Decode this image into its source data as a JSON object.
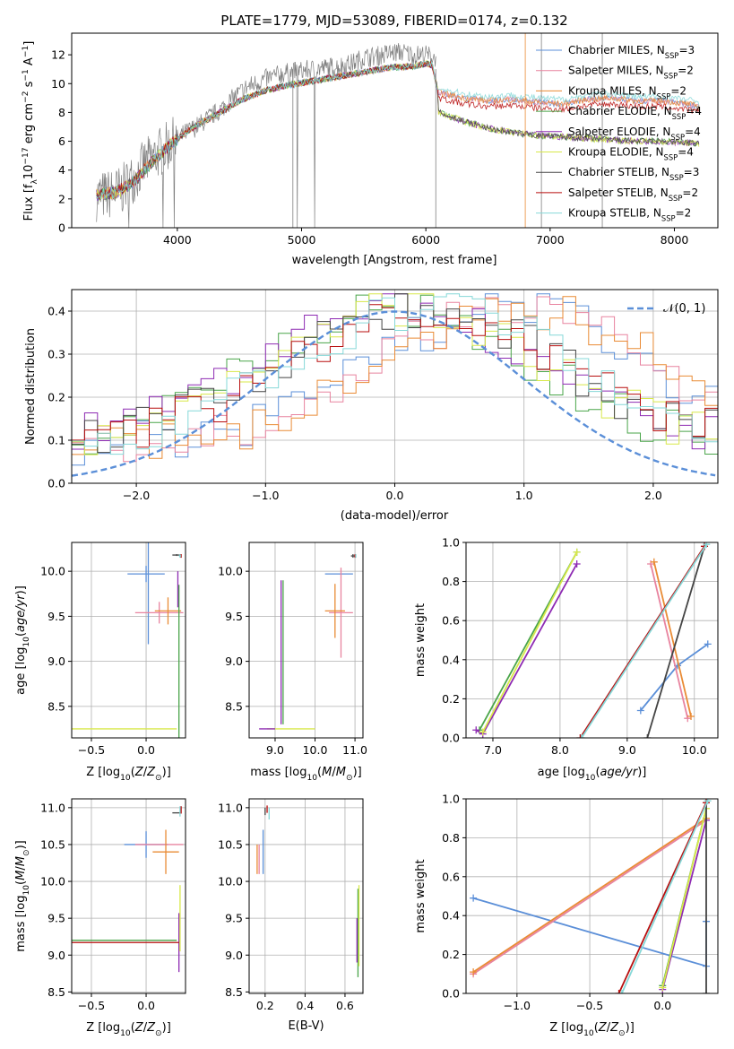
{
  "figure_title": "PLATE=1779, MJD=53089, FIBERID=0174, z=0.132",
  "models": [
    {
      "name": "Chabrier MILES, N",
      "sub": "SSP",
      "suffix": "=3",
      "color": "#5b8fd8"
    },
    {
      "name": "Salpeter MILES, N",
      "sub": "SSP",
      "suffix": "=2",
      "color": "#e8839f"
    },
    {
      "name": "Kroupa MILES, N",
      "sub": "SSP",
      "suffix": "=2",
      "color": "#e98b35"
    },
    {
      "name": "Chabrier ELODIE, N",
      "sub": "SSP",
      "suffix": "=4",
      "color": "#4aa54a"
    },
    {
      "name": "Salpeter ELODIE, N",
      "sub": "SSP",
      "suffix": "=4",
      "color": "#8e2bb3"
    },
    {
      "name": "Kroupa ELODIE, N",
      "sub": "SSP",
      "suffix": "=4",
      "color": "#d8e84a"
    },
    {
      "name": "Chabrier STELIB, N",
      "sub": "SSP",
      "suffix": "=3",
      "color": "#444444"
    },
    {
      "name": "Salpeter STELIB, N",
      "sub": "SSP",
      "suffix": "=2",
      "color": "#b80f0f"
    },
    {
      "name": "Kroupa STELIB, N",
      "sub": "SSP",
      "suffix": "=2",
      "color": "#86d8d8"
    }
  ],
  "chart_data": [
    {
      "id": "spectrum",
      "type": "line",
      "xlabel": "wavelength [Angstrom, rest frame]",
      "ylabel": "Flux [f_λ10^-17 erg cm^-2 s^-1 A^-1]",
      "xlim": [
        3150,
        8350
      ],
      "ylim": [
        0,
        13.5
      ],
      "xticks": [
        4000,
        5000,
        6000,
        7000,
        8000
      ],
      "yticks": [
        0,
        2,
        4,
        6,
        8,
        10,
        12
      ],
      "legend": "top-right",
      "grid": false,
      "data_color": "#808080",
      "data_anchors": {
        "x": [
          3350,
          3450,
          3550,
          3650,
          3750,
          3850,
          3950,
          4050,
          4150,
          4250,
          4350,
          4450,
          4550,
          4700,
          4850,
          5000,
          5100,
          5200,
          5300,
          5400,
          5500,
          5600,
          5700,
          5800,
          5900,
          6000,
          6080
        ],
        "y": [
          2.2,
          2.3,
          2.6,
          3.5,
          4.5,
          5.2,
          5.8,
          6.5,
          7.0,
          7.6,
          8.2,
          9.0,
          9.7,
          10.3,
          10.7,
          10.9,
          11.0,
          11.1,
          11.2,
          11.4,
          11.8,
          11.9,
          12.1,
          12.2,
          12.0,
          12.0,
          11.8
        ]
      },
      "model_anchors_top": {
        "x": [
          3350,
          3500,
          3650,
          3800,
          3950,
          4100,
          4300,
          4500,
          4700,
          4900,
          5100,
          5300,
          5500,
          5700,
          5900,
          6000,
          6050,
          6100,
          6300,
          6500,
          6700,
          6900,
          7100,
          7300,
          7500,
          7700,
          7900,
          8100,
          8200
        ],
        "y": [
          2.3,
          2.4,
          3.2,
          4.6,
          5.8,
          6.8,
          7.8,
          8.8,
          9.5,
          9.9,
          10.2,
          10.5,
          10.8,
          11.1,
          11.2,
          11.4,
          11.3,
          9.4,
          9.0,
          8.8,
          8.9,
          8.7,
          8.6,
          8.9,
          9.0,
          8.8,
          8.8,
          8.6,
          8.4
        ]
      },
      "model_anchors_bottom": {
        "x": [
          6100,
          6300,
          6500,
          6700,
          6900,
          7100,
          7300,
          7500,
          7700,
          7900,
          8100,
          8200
        ],
        "y": [
          8.0,
          7.4,
          6.9,
          6.6,
          6.4,
          6.3,
          6.2,
          6.1,
          6.0,
          6.0,
          5.9,
          5.8
        ]
      }
    },
    {
      "id": "residuals",
      "type": "step",
      "xlabel": "(data-model)/error",
      "ylabel": "Normed distribution",
      "xlim": [
        -2.5,
        2.5
      ],
      "ylim": [
        0,
        0.45
      ],
      "xticks": [
        -2,
        -1,
        0,
        1,
        2
      ],
      "yticks": [
        0.0,
        0.1,
        0.2,
        0.3,
        0.4
      ],
      "grid": true,
      "legend": "top-right",
      "reference_label": "𝒩(0, 1)",
      "reference_color": "#5b8fd8",
      "group_shift": [
        0.55,
        0.0,
        -0.35
      ],
      "bin_width": 0.1
    },
    {
      "id": "age-vs-Z",
      "type": "errorbar",
      "xlabel": "Z [log10(Z/Z⊙)]",
      "ylabel": "age  [log10(age/yr)]",
      "xlim": [
        -0.68,
        0.36
      ],
      "ylim": [
        8.15,
        10.32
      ],
      "xticks": [
        -0.5,
        0.0
      ],
      "yticks": [
        8.5,
        9.0,
        9.5,
        10.0
      ],
      "grid": true,
      "points": [
        {
          "m": 0,
          "x": 0.0,
          "y": 9.97,
          "xe": 0.17,
          "ye": 0.09
        },
        {
          "m": 0,
          "x": 0.02,
          "y": 9.97,
          "xe": 0.0,
          "ye": 0.78
        },
        {
          "m": 1,
          "x": 0.12,
          "y": 9.54,
          "xe": 0.22,
          "ye": 0.12
        },
        {
          "m": 2,
          "x": 0.2,
          "y": 9.56,
          "xe": 0.12,
          "ye": 0.15
        },
        {
          "m": 3,
          "x": 0.3,
          "y": 8.25,
          "xe": 0.0,
          "ye": 1.6
        },
        {
          "m": 4,
          "x": 0.29,
          "y": 9.8,
          "xe": 0.0,
          "ye": 0.2
        },
        {
          "m": 5,
          "x": -0.2,
          "y": 8.25,
          "xe": 0.48,
          "ye": 0.0
        },
        {
          "m": 6,
          "x": 0.28,
          "y": 10.18,
          "xe": 0.04,
          "ye": 0.01
        },
        {
          "m": 7,
          "x": 0.32,
          "y": 10.17,
          "xe": 0.0,
          "ye": 0.02
        },
        {
          "m": 8,
          "x": 0.31,
          "y": 10.17,
          "xe": 0.01,
          "ye": 0.02
        }
      ]
    },
    {
      "id": "age-vs-mass",
      "type": "errorbar",
      "xlabel": "mass [log10(M/M⊙)]",
      "ylabel": "",
      "xlim": [
        8.35,
        11.2
      ],
      "ylim": [
        8.15,
        10.32
      ],
      "xticks": [
        9,
        10,
        11
      ],
      "yticks": [
        8.5,
        9.0,
        9.5,
        10.0
      ],
      "grid": true,
      "points": [
        {
          "m": 0,
          "x": 10.6,
          "y": 9.97,
          "xe": 0.35,
          "ye": 0.0
        },
        {
          "m": 1,
          "x": 10.65,
          "y": 9.54,
          "xe": 0.3,
          "ye": 0.5
        },
        {
          "m": 2,
          "x": 10.5,
          "y": 9.56,
          "xe": 0.25,
          "ye": 0.3
        },
        {
          "m": 3,
          "x": 9.2,
          "y": 9.1,
          "xe": 0.0,
          "ye": 0.8
        },
        {
          "m": 4,
          "x": 9.15,
          "y": 9.1,
          "xe": 0.0,
          "ye": 0.8
        },
        {
          "m": 5,
          "x": 9.4,
          "y": 8.25,
          "xe": 0.6,
          "ye": 0.0
        },
        {
          "m": 6,
          "x": 10.95,
          "y": 10.17,
          "xe": 0.05,
          "ye": 0.02
        },
        {
          "m": 7,
          "x": 11.0,
          "y": 10.17,
          "xe": 0.0,
          "ye": 0.02
        },
        {
          "m": 8,
          "x": 11.02,
          "y": 10.17,
          "xe": 0.01,
          "ye": 0.02
        },
        {
          "m": 4,
          "x": 8.8,
          "y": 8.25,
          "xe": 0.2,
          "ye": 0.0
        }
      ]
    },
    {
      "id": "weight-vs-age",
      "type": "line",
      "xlabel": "age  [log10(age/yr)]",
      "ylabel": "mass weight",
      "xlim": [
        6.6,
        10.35
      ],
      "ylim": [
        0,
        1
      ],
      "xticks": [
        7,
        8,
        9,
        10
      ],
      "yticks": [
        0.0,
        0.2,
        0.4,
        0.6,
        0.8,
        1.0
      ],
      "grid": true,
      "series": [
        {
          "m": 0,
          "x": [
            9.2,
            9.75,
            10.2
          ],
          "y": [
            0.14,
            0.37,
            0.48
          ]
        },
        {
          "m": 1,
          "x": [
            9.35,
            9.9
          ],
          "y": [
            0.89,
            0.1
          ]
        },
        {
          "m": 2,
          "x": [
            9.4,
            9.95
          ],
          "y": [
            0.9,
            0.11
          ]
        },
        {
          "m": 3,
          "x": [
            6.8,
            8.25
          ],
          "y": [
            0.04,
            0.95
          ]
        },
        {
          "m": 4,
          "x": [
            6.75,
            6.85,
            8.25
          ],
          "y": [
            0.04,
            0.02,
            0.89
          ]
        },
        {
          "m": 5,
          "x": [
            6.85,
            8.25
          ],
          "y": [
            0.03,
            0.95
          ]
        },
        {
          "m": 6,
          "x": [
            9.3,
            10.15
          ],
          "y": [
            0.0,
            0.98
          ]
        },
        {
          "m": 7,
          "x": [
            8.3,
            10.15
          ],
          "y": [
            0.0,
            0.98
          ]
        },
        {
          "m": 8,
          "x": [
            8.32,
            10.18
          ],
          "y": [
            0.0,
            0.99
          ]
        }
      ]
    },
    {
      "id": "mass-vs-Z",
      "type": "errorbar",
      "xlabel": "Z [log10(Z/Z⊙)]",
      "ylabel": "mass [log10(M/M⊙)]",
      "xlim": [
        -0.68,
        0.36
      ],
      "ylim": [
        8.48,
        11.12
      ],
      "xticks": [
        -0.5,
        0.0
      ],
      "yticks": [
        8.5,
        9.0,
        9.5,
        10.0,
        10.5,
        11.0
      ],
      "grid": true,
      "points": [
        {
          "m": 0,
          "x": 0.0,
          "y": 10.5,
          "xe": 0.2,
          "ye": 0.18
        },
        {
          "m": 1,
          "x": 0.12,
          "y": 10.5,
          "xe": 0.22,
          "ye": 0.0
        },
        {
          "m": 2,
          "x": 0.18,
          "y": 10.4,
          "xe": 0.12,
          "ye": 0.3
        },
        {
          "m": 3,
          "x": -0.2,
          "y": 9.2,
          "xe": 0.48,
          "ye": 0.0
        },
        {
          "m": 4,
          "x": 0.3,
          "y": 9.17,
          "xe": 0.0,
          "ye": 0.4
        },
        {
          "m": 5,
          "x": 0.31,
          "y": 9.5,
          "xe": 0.0,
          "ye": 0.45
        },
        {
          "m": 6,
          "x": 0.28,
          "y": 10.93,
          "xe": 0.04,
          "ye": 0.0
        },
        {
          "m": 7,
          "x": 0.32,
          "y": 10.97,
          "xe": 0.0,
          "ye": 0.05
        },
        {
          "m": 8,
          "x": 0.31,
          "y": 10.95,
          "xe": 0.0,
          "ye": 0.07
        },
        {
          "m": 7,
          "x": -0.2,
          "y": 9.17,
          "xe": 0.5,
          "ye": 0.0
        }
      ]
    },
    {
      "id": "mass-vs-EBV",
      "type": "errorbar",
      "xlabel": "E(B-V)",
      "ylabel": "",
      "xlim": [
        0.12,
        0.69
      ],
      "ylim": [
        8.48,
        11.12
      ],
      "xticks": [
        0.2,
        0.4,
        0.6
      ],
      "yticks": [
        8.5,
        9.0,
        9.5,
        10.0,
        10.5,
        11.0
      ],
      "grid": true,
      "points": [
        {
          "m": 0,
          "x": 0.19,
          "y": 10.4,
          "xe": 0.0,
          "ye": 0.3
        },
        {
          "m": 1,
          "x": 0.17,
          "y": 10.3,
          "xe": 0.0,
          "ye": 0.2
        },
        {
          "m": 2,
          "x": 0.16,
          "y": 10.3,
          "xe": 0.0,
          "ye": 0.2
        },
        {
          "m": 3,
          "x": 0.665,
          "y": 9.3,
          "xe": 0.0,
          "ye": 0.6
        },
        {
          "m": 4,
          "x": 0.66,
          "y": 9.2,
          "xe": 0.0,
          "ye": 0.3
        },
        {
          "m": 5,
          "x": 0.67,
          "y": 9.4,
          "xe": 0.0,
          "ye": 0.55
        },
        {
          "m": 6,
          "x": 0.2,
          "y": 10.95,
          "xe": 0.0,
          "ye": 0.05
        },
        {
          "m": 7,
          "x": 0.21,
          "y": 10.98,
          "xe": 0.0,
          "ye": 0.05
        },
        {
          "m": 8,
          "x": 0.22,
          "y": 10.92,
          "xe": 0.0,
          "ye": 0.08
        }
      ]
    },
    {
      "id": "weight-vs-Z",
      "type": "line",
      "xlabel": "Z [log10(Z/Z⊙)]",
      "ylabel": "mass weight",
      "xlim": [
        -1.35,
        0.38
      ],
      "ylim": [
        0,
        1
      ],
      "xticks": [
        -1.0,
        -0.5,
        0.0
      ],
      "yticks": [
        0.0,
        0.2,
        0.4,
        0.6,
        0.8,
        1.0
      ],
      "grid": true,
      "series": [
        {
          "m": 0,
          "x": [
            -1.3,
            0.3,
            0.3
          ],
          "y": [
            0.49,
            0.14,
            0.37
          ]
        },
        {
          "m": 1,
          "x": [
            -1.3,
            0.3
          ],
          "y": [
            0.1,
            0.89
          ]
        },
        {
          "m": 2,
          "x": [
            -1.3,
            0.3
          ],
          "y": [
            0.11,
            0.9
          ]
        },
        {
          "m": 3,
          "x": [
            0.0,
            0.3
          ],
          "y": [
            0.04,
            0.95
          ]
        },
        {
          "m": 4,
          "x": [
            0.0,
            0.3
          ],
          "y": [
            0.02,
            0.89
          ]
        },
        {
          "m": 5,
          "x": [
            0.0,
            0.3
          ],
          "y": [
            0.03,
            0.95
          ]
        },
        {
          "m": 6,
          "x": [
            0.3,
            0.3
          ],
          "y": [
            0.0,
            0.98
          ]
        },
        {
          "m": 7,
          "x": [
            -0.3,
            0.3
          ],
          "y": [
            0.0,
            0.98
          ]
        },
        {
          "m": 8,
          "x": [
            -0.28,
            0.31
          ],
          "y": [
            0.0,
            0.99
          ]
        }
      ]
    }
  ]
}
